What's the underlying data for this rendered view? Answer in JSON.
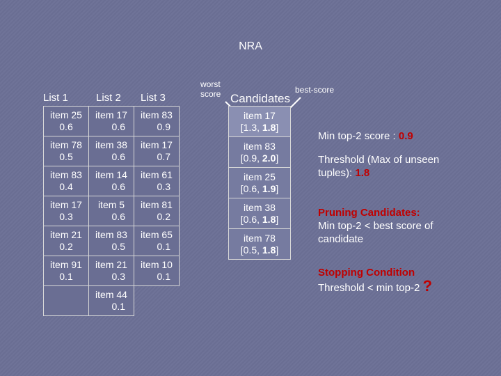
{
  "title": "NRA",
  "lists": {
    "headers": [
      "List 1",
      "List 2",
      "List 3"
    ],
    "rows": [
      [
        {
          "item": "item 25",
          "score": "0.6"
        },
        {
          "item": "item 17",
          "score": "0.6"
        },
        {
          "item": "item 83",
          "score": "0.9"
        }
      ],
      [
        {
          "item": "item 78",
          "score": "0.5"
        },
        {
          "item": "item 38",
          "score": "0.6"
        },
        {
          "item": "item 17",
          "score": "0.7"
        }
      ],
      [
        {
          "item": "item 83",
          "score": "0.4"
        },
        {
          "item": "item 14",
          "score": "0.6"
        },
        {
          "item": "item 61",
          "score": "0.3"
        }
      ],
      [
        {
          "item": "item 17",
          "score": "0.3"
        },
        {
          "item": "item 5",
          "score": "0.6"
        },
        {
          "item": "item 81",
          "score": "0.2"
        }
      ],
      [
        {
          "item": "item 21",
          "score": "0.2"
        },
        {
          "item": "item 83",
          "score": "0.5"
        },
        {
          "item": "item 65",
          "score": "0.1"
        }
      ],
      [
        {
          "item": "item 91",
          "score": "0.1"
        },
        {
          "item": "item 21",
          "score": "0.3"
        },
        {
          "item": "item 10",
          "score": "0.1"
        }
      ],
      [
        null,
        {
          "item": "item 44",
          "score": "0.1"
        },
        null
      ]
    ]
  },
  "labels": {
    "worst_score_1": "worst",
    "worst_score_2": "score",
    "best_score": "best-score",
    "candidates": "Candidates"
  },
  "candidates": [
    {
      "item": "item 17",
      "open": "[",
      "worst": "1.3",
      "sep": ", ",
      "best": "1.8",
      "close": "]"
    },
    {
      "item": "item 83",
      "open": "[",
      "worst": "0.9",
      "sep": ", ",
      "best": "2.0",
      "close": "]"
    },
    {
      "item": "item 25",
      "open": "[",
      "worst": "0.6",
      "sep": ", ",
      "best": "1.9",
      "close": "]"
    },
    {
      "item": "item 38",
      "open": "[",
      "worst": "0.6",
      "sep": ", ",
      "best": "1.8",
      "close": "]"
    },
    {
      "item": "item 78",
      "open": "[",
      "worst": "0.5",
      "sep": ", ",
      "best": "1.8",
      "close": "]"
    }
  ],
  "info": {
    "min_top2_label": "Min top-2 score : ",
    "min_top2_value": "0.9",
    "threshold_label_1": "Threshold (Max of unseen",
    "threshold_label_2": "tuples): ",
    "threshold_value": "1.8",
    "pruning_title": "Pruning Candidates:",
    "pruning_text_1": "Min top-2 < best score of",
    "pruning_text_2": "candidate",
    "stopping_title": "Stopping Condition",
    "stopping_text": "Threshold < min top-2 ",
    "stopping_mark": "?"
  },
  "colors": {
    "background": "#6f7398",
    "highlight_red": "#c00000",
    "marker_yellow": "#f3c21a"
  }
}
